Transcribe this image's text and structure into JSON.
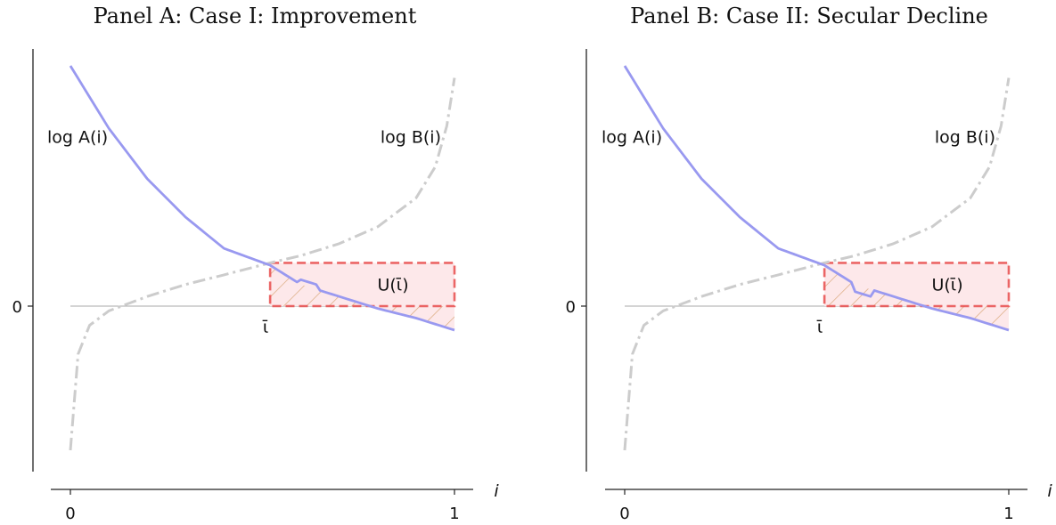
{
  "chart_data": [
    {
      "type": "line",
      "title": "Panel A: Case I: Improvement",
      "xlabel": "i",
      "ylabel": "",
      "xlim": [
        0,
        1
      ],
      "x_ticks": [
        "0",
        "1"
      ],
      "y_ticks": [
        "0"
      ],
      "series": [
        {
          "name": "log A(i)",
          "label": "log A(i)",
          "color": "#9999f0",
          "style": "solid",
          "x": [
            0,
            0.1,
            0.2,
            0.3,
            0.4,
            0.52,
            0.6,
            0.7,
            0.8,
            0.9,
            1.0
          ],
          "y": [
            1.0,
            0.74,
            0.53,
            0.37,
            0.24,
            0.17,
            0.09,
            0.04,
            -0.01,
            -0.05,
            -0.1
          ]
        },
        {
          "name": "log B(i)",
          "label": "log B(i)",
          "color": "#cccccc",
          "style": "dashdot",
          "x": [
            0.0,
            0.02,
            0.05,
            0.1,
            0.2,
            0.3,
            0.4,
            0.52,
            0.6,
            0.7,
            0.8,
            0.9,
            0.95,
            0.98,
            1.0
          ],
          "y": [
            -0.6,
            -0.2,
            -0.08,
            -0.02,
            0.04,
            0.09,
            0.13,
            0.18,
            0.21,
            0.26,
            0.33,
            0.45,
            0.58,
            0.75,
            0.95
          ]
        }
      ],
      "annotations": {
        "threshold_label": "ῑ",
        "region_label": "U(ῑ)",
        "threshold_x": 0.52
      },
      "region": {
        "x": [
          0.52,
          1.0
        ],
        "y": [
          0,
          0.18
        ],
        "color": "#e74c4c",
        "fill": "#fde8ea"
      },
      "step": {
        "x": [
          0.6,
          0.65
        ],
        "offset": 0.02
      }
    },
    {
      "type": "line",
      "title": "Panel B: Case II: Secular Decline",
      "xlabel": "i",
      "ylabel": "",
      "xlim": [
        0,
        1
      ],
      "x_ticks": [
        "0",
        "1"
      ],
      "y_ticks": [
        "0"
      ],
      "series": [
        {
          "name": "log A(i)",
          "label": "log A(i)",
          "color": "#9999f0",
          "style": "solid",
          "x": [
            0,
            0.1,
            0.2,
            0.3,
            0.4,
            0.52,
            0.6,
            0.7,
            0.8,
            0.9,
            1.0
          ],
          "y": [
            1.0,
            0.74,
            0.53,
            0.37,
            0.24,
            0.17,
            0.09,
            0.04,
            -0.01,
            -0.05,
            -0.1
          ]
        },
        {
          "name": "log B(i)",
          "label": "log B(i)",
          "color": "#cccccc",
          "style": "dashdot",
          "x": [
            0.0,
            0.02,
            0.05,
            0.1,
            0.2,
            0.3,
            0.4,
            0.52,
            0.6,
            0.7,
            0.8,
            0.9,
            0.95,
            0.98,
            1.0
          ],
          "y": [
            -0.6,
            -0.2,
            -0.08,
            -0.02,
            0.04,
            0.09,
            0.13,
            0.18,
            0.21,
            0.26,
            0.33,
            0.45,
            0.58,
            0.75,
            0.95
          ]
        }
      ],
      "annotations": {
        "threshold_label": "ῑ",
        "region_label": "U(ῑ)",
        "threshold_x": 0.52
      },
      "region": {
        "x": [
          0.52,
          1.0
        ],
        "y": [
          0,
          0.18
        ],
        "color": "#e74c4c",
        "fill": "#fde8ea"
      },
      "step": {
        "x": [
          0.6,
          0.65
        ],
        "offset": -0.03
      }
    }
  ]
}
